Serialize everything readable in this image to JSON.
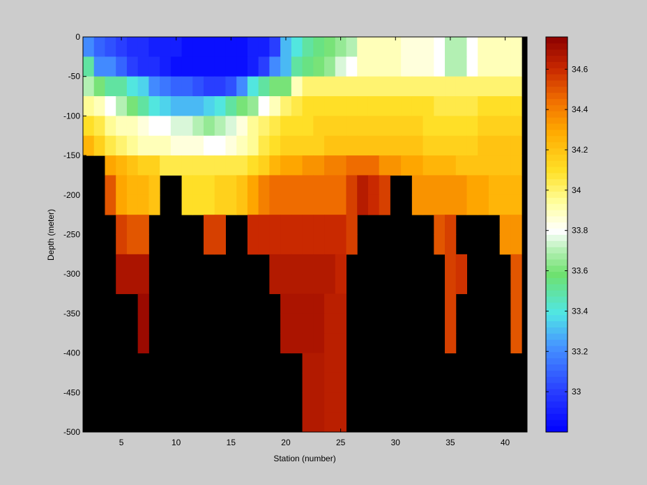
{
  "chart_data": {
    "type": "heatmap",
    "title": "",
    "xlabel": "Station (number)",
    "ylabel": "Depth (meter)",
    "x_range": [
      1.5,
      42
    ],
    "y_range": [
      -500,
      0
    ],
    "x_ticks": [
      5,
      10,
      15,
      20,
      25,
      30,
      35,
      40
    ],
    "y_ticks": [
      0,
      -50,
      -100,
      -150,
      -200,
      -250,
      -300,
      -350,
      -400,
      -450,
      -500
    ],
    "colorbar": {
      "range": [
        32.8,
        34.76
      ],
      "ticks": [
        33,
        33.2,
        33.4,
        33.6,
        33.8,
        34,
        34.2,
        34.4,
        34.6
      ],
      "colormap": "jet-with-white-center",
      "no_data_color": "#000000"
    },
    "grid": false,
    "legend": "colorbar-right",
    "cells": {
      "stations": [
        2,
        3,
        4,
        5,
        6,
        7,
        8,
        9,
        10,
        11,
        12,
        13,
        14,
        15,
        16,
        17,
        18,
        19,
        20,
        21,
        22,
        23,
        24,
        25,
        26,
        27,
        28,
        29,
        30,
        31,
        32,
        33,
        34,
        35,
        36,
        37,
        38,
        39,
        40,
        41
      ],
      "depths": [
        0,
        -25,
        -50,
        -75,
        -100,
        -125,
        -150,
        -175,
        -200,
        -225,
        -250,
        -275,
        -300,
        -325,
        -350,
        -375,
        -400,
        -425,
        -450,
        -475
      ],
      "depth_step": 25,
      "rows": [
        {
          "depth": 0,
          "values": [
            33.2,
            33.1,
            33.05,
            33.0,
            32.95,
            32.95,
            32.9,
            32.9,
            32.9,
            32.85,
            32.85,
            32.85,
            32.85,
            32.85,
            32.85,
            32.9,
            32.9,
            33.0,
            33.3,
            33.4,
            33.5,
            33.55,
            33.6,
            33.65,
            33.7,
            33.9,
            33.9,
            33.9,
            33.9,
            33.85,
            33.85,
            33.85,
            33.8,
            33.7,
            33.7,
            33.8,
            33.9,
            33.9,
            33.9,
            33.9
          ]
        },
        {
          "depth": -25,
          "values": [
            33.5,
            33.2,
            33.2,
            33.1,
            33.0,
            32.95,
            32.95,
            32.9,
            32.85,
            32.85,
            32.85,
            32.85,
            32.85,
            32.85,
            32.85,
            32.9,
            33.0,
            33.2,
            33.3,
            33.5,
            33.55,
            33.6,
            33.65,
            33.75,
            33.8,
            33.9,
            33.9,
            33.9,
            33.9,
            33.85,
            33.85,
            33.85,
            33.8,
            33.7,
            33.7,
            33.8,
            33.9,
            33.9,
            33.9,
            33.9
          ]
        },
        {
          "depth": -50,
          "values": [
            33.7,
            33.6,
            33.5,
            33.5,
            33.4,
            33.35,
            33.2,
            33.15,
            33.1,
            33.1,
            33.05,
            33.0,
            33.0,
            33.05,
            33.2,
            33.4,
            33.5,
            33.6,
            33.6,
            33.9,
            34.0,
            34.0,
            34.0,
            34.0,
            34.0,
            34.0,
            34.0,
            34.0,
            34.0,
            34.0,
            34.0,
            34.0,
            34.0,
            34.0,
            34.0,
            34.0,
            34.0,
            34.0,
            34.0,
            34.0
          ]
        },
        {
          "depth": -75,
          "values": [
            33.95,
            33.9,
            33.8,
            33.7,
            33.6,
            33.5,
            33.4,
            33.35,
            33.3,
            33.3,
            33.3,
            33.35,
            33.4,
            33.5,
            33.6,
            33.65,
            33.8,
            33.9,
            34.0,
            34.05,
            34.1,
            34.1,
            34.1,
            34.1,
            34.1,
            34.1,
            34.1,
            34.1,
            34.1,
            34.1,
            34.1,
            34.1,
            34.05,
            34.05,
            34.05,
            34.05,
            34.1,
            34.1,
            34.1,
            34.1
          ]
        },
        {
          "depth": -100,
          "values": [
            34.1,
            34.05,
            33.95,
            33.9,
            33.9,
            33.85,
            33.8,
            33.8,
            33.75,
            33.75,
            33.7,
            33.65,
            33.7,
            33.75,
            33.85,
            33.95,
            34.0,
            34.05,
            34.1,
            34.1,
            34.1,
            34.15,
            34.15,
            34.15,
            34.15,
            34.15,
            34.15,
            34.15,
            34.15,
            34.15,
            34.15,
            34.1,
            34.1,
            34.1,
            34.1,
            34.1,
            34.15,
            34.15,
            34.15,
            34.15
          ]
        },
        {
          "depth": -125,
          "values": [
            34.25,
            34.15,
            34.05,
            34.0,
            33.95,
            33.9,
            33.9,
            33.9,
            33.85,
            33.85,
            33.85,
            33.8,
            33.8,
            33.85,
            33.9,
            33.95,
            34.05,
            34.1,
            34.15,
            34.15,
            34.15,
            34.15,
            34.2,
            34.2,
            34.2,
            34.2,
            34.2,
            34.2,
            34.2,
            34.2,
            34.2,
            34.15,
            34.15,
            34.15,
            34.15,
            34.15,
            34.2,
            34.2,
            34.2,
            34.2
          ]
        },
        {
          "depth": -150,
          "values": [
            null,
            null,
            34.3,
            34.25,
            34.2,
            34.15,
            34.15,
            34.05,
            34.05,
            34.05,
            34.05,
            34.05,
            34.05,
            34.05,
            34.05,
            34.1,
            34.15,
            34.25,
            34.3,
            34.3,
            34.35,
            34.35,
            34.4,
            34.4,
            34.45,
            34.45,
            34.45,
            34.35,
            34.35,
            34.3,
            34.3,
            34.25,
            34.25,
            34.25,
            34.2,
            34.2,
            34.2,
            34.2,
            34.2,
            34.2
          ]
        },
        {
          "depth": -175,
          "values": [
            null,
            null,
            34.5,
            34.3,
            34.25,
            34.25,
            34.2,
            null,
            null,
            34.1,
            34.1,
            34.1,
            34.15,
            34.15,
            34.2,
            34.3,
            34.4,
            34.45,
            34.45,
            34.45,
            34.45,
            34.45,
            34.45,
            34.45,
            34.55,
            34.65,
            34.6,
            34.55,
            null,
            null,
            34.35,
            34.35,
            34.35,
            34.35,
            34.35,
            34.3,
            34.3,
            34.25,
            34.25,
            34.25
          ]
        },
        {
          "depth": -200,
          "values": [
            null,
            null,
            34.5,
            34.3,
            34.25,
            34.25,
            34.2,
            null,
            null,
            34.1,
            34.1,
            34.1,
            34.15,
            34.15,
            34.2,
            34.3,
            34.4,
            34.45,
            34.45,
            34.45,
            34.45,
            34.45,
            34.45,
            34.45,
            34.55,
            34.65,
            34.6,
            34.55,
            null,
            null,
            34.35,
            34.35,
            34.35,
            34.35,
            34.35,
            34.3,
            34.3,
            34.25,
            34.25,
            34.25
          ]
        },
        {
          "depth": -225,
          "values": [
            null,
            null,
            null,
            34.55,
            34.5,
            34.5,
            null,
            null,
            null,
            null,
            null,
            34.55,
            34.55,
            null,
            null,
            34.6,
            34.6,
            34.6,
            34.6,
            34.6,
            34.6,
            34.6,
            34.6,
            34.6,
            34.55,
            null,
            null,
            null,
            null,
            null,
            null,
            null,
            34.5,
            34.55,
            null,
            null,
            null,
            null,
            34.35,
            34.35
          ]
        },
        {
          "depth": -250,
          "values": [
            null,
            null,
            null,
            34.55,
            34.5,
            34.5,
            null,
            null,
            null,
            null,
            null,
            34.55,
            34.55,
            null,
            null,
            34.6,
            34.6,
            34.6,
            34.6,
            34.6,
            34.6,
            34.6,
            34.6,
            34.6,
            34.55,
            null,
            null,
            null,
            null,
            null,
            null,
            null,
            34.5,
            34.55,
            null,
            null,
            null,
            null,
            34.35,
            34.35
          ]
        },
        {
          "depth": -275,
          "values": [
            null,
            null,
            null,
            34.68,
            34.68,
            34.68,
            null,
            null,
            null,
            null,
            null,
            null,
            null,
            null,
            null,
            null,
            null,
            34.66,
            34.66,
            34.66,
            34.66,
            34.66,
            34.66,
            34.62,
            null,
            null,
            null,
            null,
            null,
            null,
            null,
            null,
            null,
            34.55,
            34.58,
            null,
            null,
            null,
            null,
            34.5
          ]
        },
        {
          "depth": -300,
          "values": [
            null,
            null,
            null,
            34.68,
            34.68,
            34.68,
            null,
            null,
            null,
            null,
            null,
            null,
            null,
            null,
            null,
            null,
            null,
            34.66,
            34.66,
            34.66,
            34.66,
            34.66,
            34.66,
            34.62,
            null,
            null,
            null,
            null,
            null,
            null,
            null,
            null,
            null,
            34.55,
            34.58,
            null,
            null,
            null,
            null,
            34.5
          ]
        },
        {
          "depth": -325,
          "values": [
            null,
            null,
            null,
            null,
            null,
            34.72,
            null,
            null,
            null,
            null,
            null,
            null,
            null,
            null,
            null,
            null,
            null,
            null,
            34.68,
            34.68,
            34.68,
            34.68,
            34.64,
            34.64,
            null,
            null,
            null,
            null,
            null,
            null,
            null,
            null,
            null,
            34.55,
            null,
            null,
            null,
            null,
            null,
            34.5
          ]
        },
        {
          "depth": -350,
          "values": [
            null,
            null,
            null,
            null,
            null,
            34.72,
            null,
            null,
            null,
            null,
            null,
            null,
            null,
            null,
            null,
            null,
            null,
            null,
            34.68,
            34.68,
            34.68,
            34.68,
            34.64,
            34.64,
            null,
            null,
            null,
            null,
            null,
            null,
            null,
            null,
            null,
            34.55,
            null,
            null,
            null,
            null,
            null,
            34.5
          ]
        },
        {
          "depth": -375,
          "values": [
            null,
            null,
            null,
            null,
            null,
            34.72,
            null,
            null,
            null,
            null,
            null,
            null,
            null,
            null,
            null,
            null,
            null,
            null,
            34.68,
            34.68,
            34.68,
            34.68,
            34.64,
            34.64,
            null,
            null,
            null,
            null,
            null,
            null,
            null,
            null,
            null,
            34.55,
            null,
            null,
            null,
            null,
            null,
            34.5
          ]
        },
        {
          "depth": -400,
          "values": [
            null,
            null,
            null,
            null,
            null,
            null,
            null,
            null,
            null,
            null,
            null,
            null,
            null,
            null,
            null,
            null,
            null,
            null,
            null,
            null,
            34.66,
            34.66,
            34.64,
            34.64,
            null,
            null,
            null,
            null,
            null,
            null,
            null,
            null,
            null,
            null,
            null,
            null,
            null,
            null,
            null,
            null
          ]
        },
        {
          "depth": -425,
          "values": [
            null,
            null,
            null,
            null,
            null,
            null,
            null,
            null,
            null,
            null,
            null,
            null,
            null,
            null,
            null,
            null,
            null,
            null,
            null,
            null,
            34.66,
            34.66,
            34.64,
            34.64,
            null,
            null,
            null,
            null,
            null,
            null,
            null,
            null,
            null,
            null,
            null,
            null,
            null,
            null,
            null,
            null
          ]
        },
        {
          "depth": -450,
          "values": [
            null,
            null,
            null,
            null,
            null,
            null,
            null,
            null,
            null,
            null,
            null,
            null,
            null,
            null,
            null,
            null,
            null,
            null,
            null,
            null,
            34.66,
            34.66,
            34.64,
            34.64,
            null,
            null,
            null,
            null,
            null,
            null,
            null,
            null,
            null,
            null,
            null,
            null,
            null,
            null,
            null,
            null
          ]
        },
        {
          "depth": -475,
          "values": [
            null,
            null,
            null,
            null,
            null,
            null,
            null,
            null,
            null,
            null,
            null,
            null,
            null,
            null,
            null,
            null,
            null,
            null,
            null,
            null,
            34.66,
            34.66,
            34.64,
            34.64,
            null,
            null,
            null,
            null,
            null,
            null,
            null,
            null,
            null,
            null,
            null,
            null,
            null,
            null,
            null,
            null
          ]
        }
      ]
    }
  }
}
